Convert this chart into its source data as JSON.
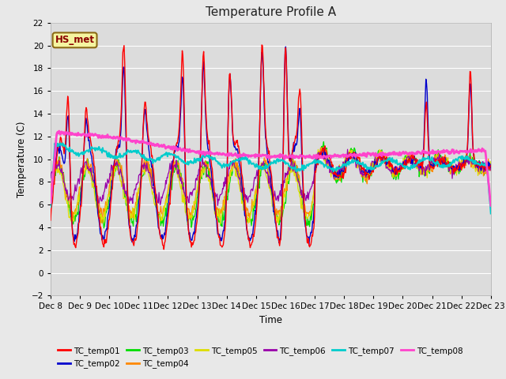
{
  "title": "Temperature Profile A",
  "xlabel": "Time",
  "ylabel": "Temperature (C)",
  "ylim": [
    -2,
    22
  ],
  "fig_width": 6.4,
  "fig_height": 4.8,
  "dpi": 100,
  "bg_color": "#e8e8e8",
  "plot_bg_color": "#dcdcdc",
  "grid_color": "#ffffff",
  "annotation_text": "HS_met",
  "annotation_fg": "#8b0000",
  "annotation_bg": "#f5f5a0",
  "annotation_border": "#8b6914",
  "series_colors": {
    "TC_temp01": "#ff0000",
    "TC_temp02": "#0000cc",
    "TC_temp03": "#00dd00",
    "TC_temp04": "#ff8800",
    "TC_temp05": "#dddd00",
    "TC_temp06": "#9900aa",
    "TC_temp07": "#00cccc",
    "TC_temp08": "#ff44cc"
  },
  "x_tick_labels": [
    "Dec 8",
    "Dec 9",
    "Dec 10",
    "Dec 11",
    "Dec 12",
    "Dec 13",
    "Dec 14",
    "Dec 15",
    "Dec 16",
    "Dec 17",
    "Dec 18",
    "Dec 19",
    "Dec 20",
    "Dec 21",
    "Dec 22",
    "Dec 23"
  ],
  "legend_order": [
    "TC_temp01",
    "TC_temp02",
    "TC_temp03",
    "TC_temp04",
    "TC_temp05",
    "TC_temp06",
    "TC_temp07",
    "TC_temp08"
  ]
}
